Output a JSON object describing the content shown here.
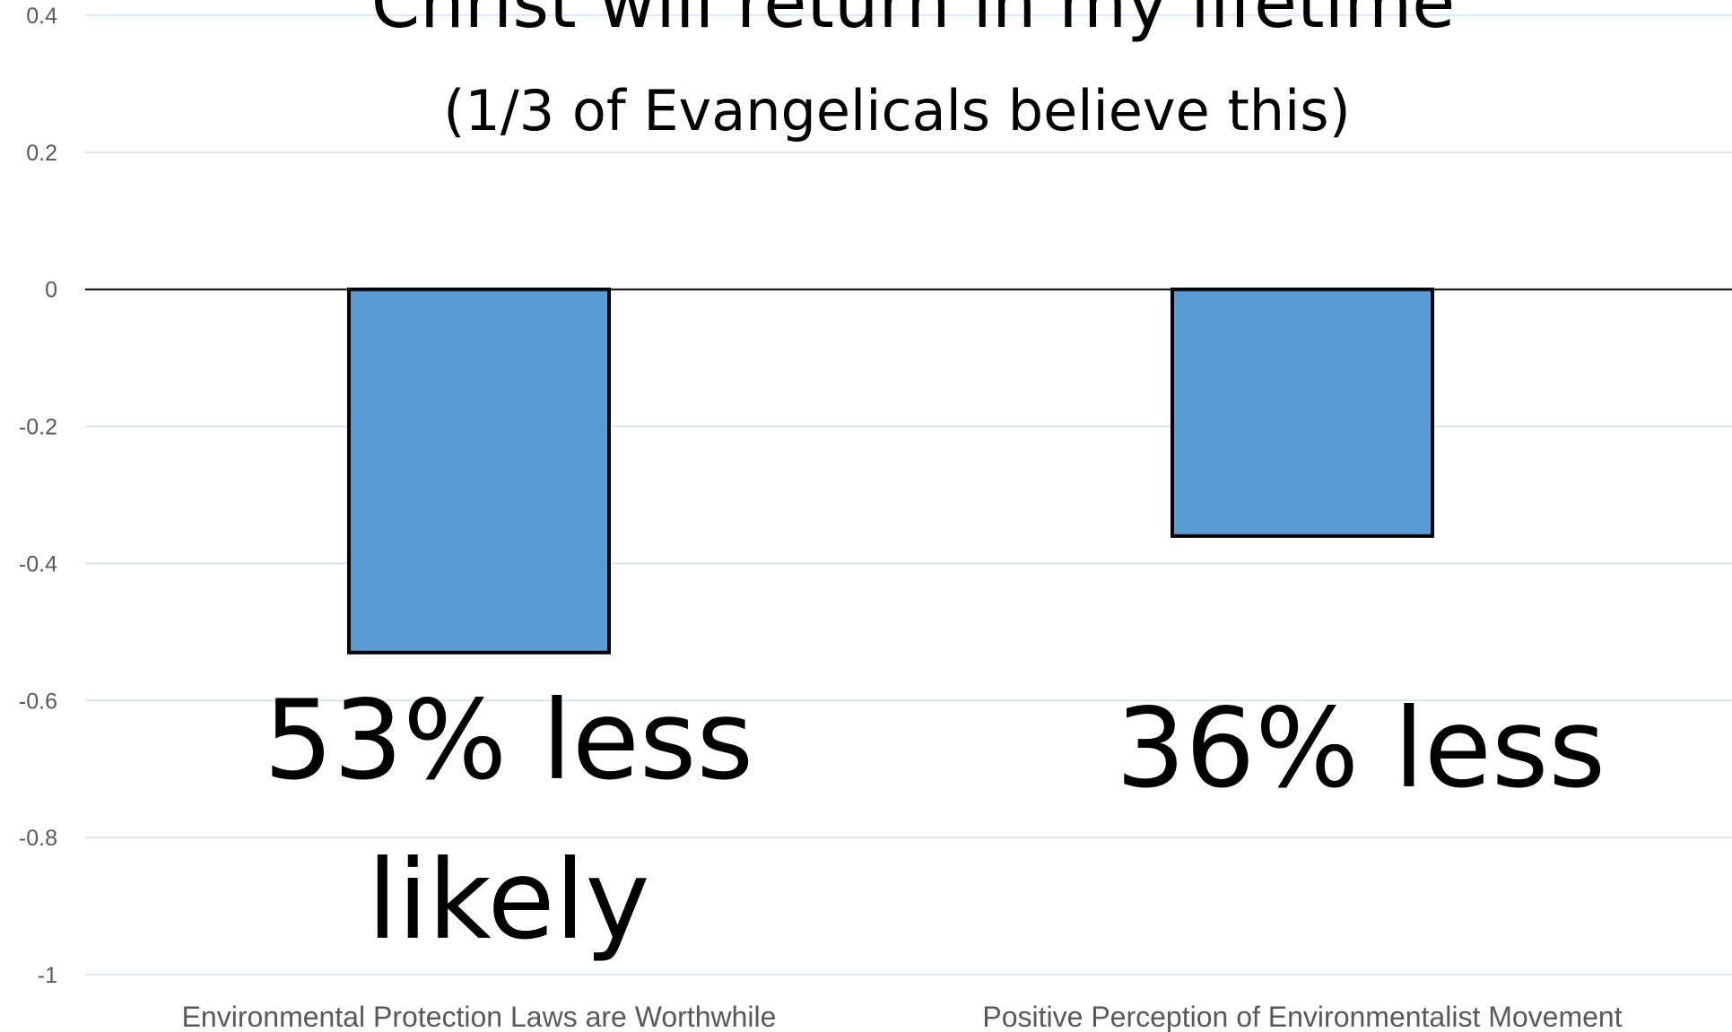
{
  "chart_data": {
    "type": "bar",
    "title": "Christ will return in my lifetime",
    "subtitle": "(1/3 of Evangelicals believe this)",
    "categories": [
      "Environmental Protection Laws are Worthwhile",
      "Positive Perception of Environmentalist Movement"
    ],
    "values": [
      -0.53,
      -0.36
    ],
    "ylim": [
      -1,
      0.4
    ],
    "yticks": [
      0.4,
      0.2,
      0,
      -0.2,
      -0.4,
      -0.6,
      -0.8,
      -1
    ],
    "ytick_labels": [
      "0.4",
      "0.2",
      "0",
      "-0.2",
      "-0.4",
      "-0.6",
      "-0.8",
      "-1"
    ],
    "grid": true,
    "annotations": [
      {
        "category_index": 0,
        "lines": [
          "53% less",
          "likely"
        ]
      },
      {
        "category_index": 1,
        "lines": [
          "36% less"
        ]
      }
    ],
    "colors": {
      "bar_fill": "#5b9bd5",
      "bar_stroke": "#000000",
      "gridline": "#d0e0ef",
      "zero_line": "#000000",
      "tick_text": "#595959",
      "title_text": "#000000"
    }
  }
}
